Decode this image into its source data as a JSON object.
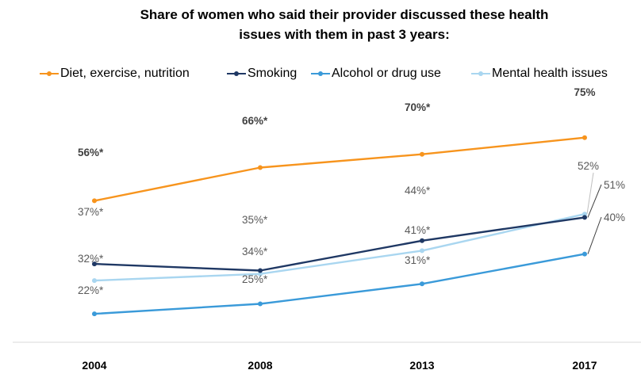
{
  "chart_data": {
    "type": "line",
    "title_lines": [
      "Share of women who said their provider discussed these health",
      "issues with them in past 3 years:"
    ],
    "categories": [
      "2004",
      "2008",
      "2013",
      "2017"
    ],
    "ylim": [
      0,
      100
    ],
    "grid": false,
    "legend_position": "top",
    "series": [
      {
        "name": "Diet, exercise, nutrition",
        "color": "#F7941D",
        "values": [
          56,
          66,
          70,
          75
        ],
        "labels": [
          "56%*",
          "66%*",
          "70%*",
          "75%"
        ],
        "bold_labels": true
      },
      {
        "name": "Smoking",
        "color": "#1F3864",
        "values": [
          37,
          35,
          44,
          51
        ],
        "labels": [
          "37%*",
          "35%*",
          "44%*",
          "51%"
        ],
        "bold_labels": false
      },
      {
        "name": "Alcohol or drug use",
        "color": "#3A9AD9",
        "values": [
          22,
          25,
          31,
          40
        ],
        "labels": [
          "22%*",
          "25%*",
          "31%*",
          "40%"
        ],
        "bold_labels": false
      },
      {
        "name": "Mental health issues",
        "color": "#A9D6F0",
        "values": [
          32,
          34,
          41,
          52
        ],
        "labels": [
          "32%*",
          "34%*",
          "41%*",
          "52%"
        ],
        "bold_labels": false
      }
    ]
  }
}
